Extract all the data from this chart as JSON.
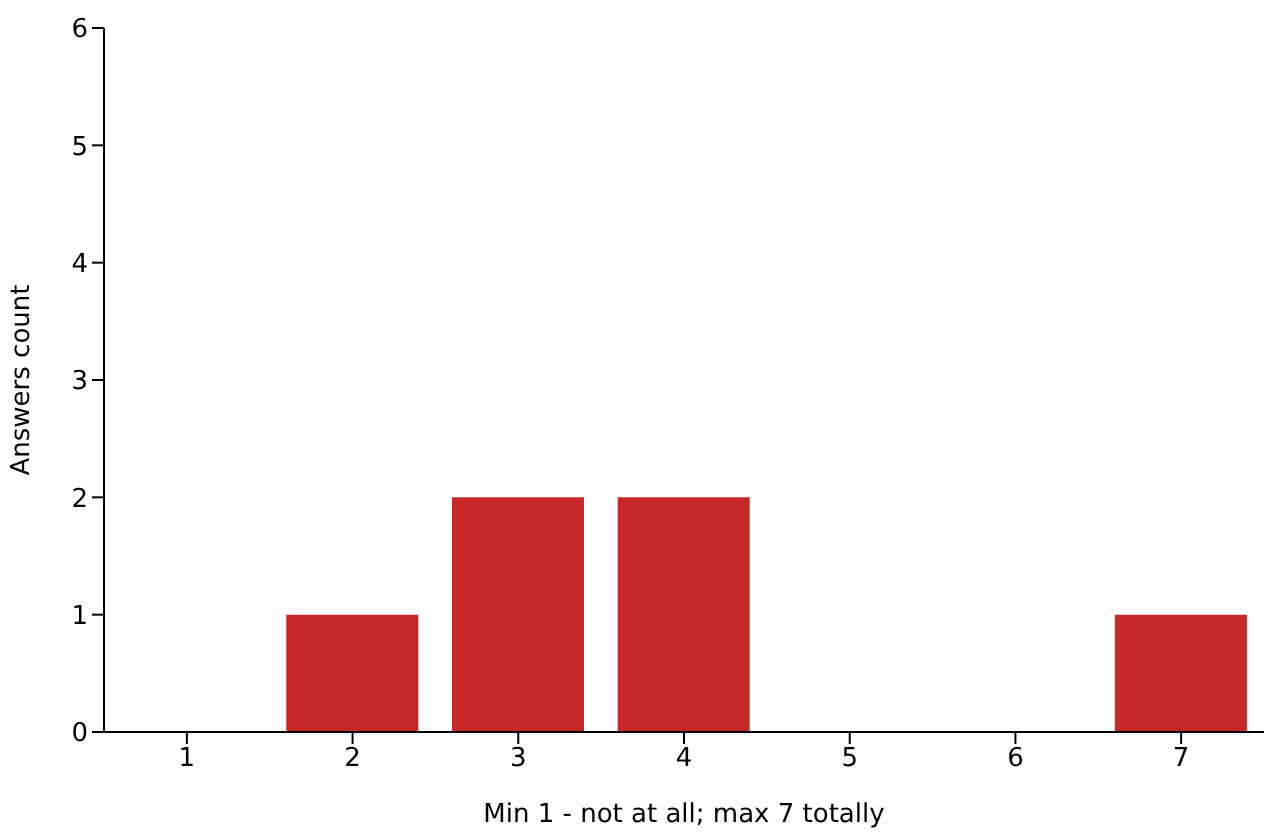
{
  "chart_data": {
    "type": "bar",
    "xlabel": "Min 1 - not at all; max 7 totally",
    "ylabel": "Answers count",
    "categories": [
      "1",
      "2",
      "3",
      "4",
      "5",
      "6",
      "7"
    ],
    "values": [
      0,
      1,
      2,
      2,
      0,
      0,
      1
    ],
    "color": "#c62828",
    "ylim": [
      0,
      6
    ],
    "yticks": [
      0,
      1,
      2,
      3,
      4,
      5,
      6
    ],
    "grid": false,
    "legend": false
  }
}
